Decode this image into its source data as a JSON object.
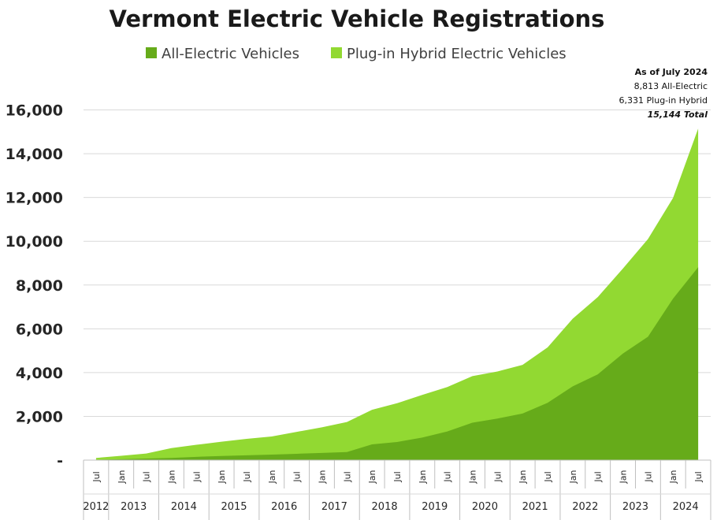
{
  "chart_data": {
    "type": "area",
    "title": "Vermont Electric Vehicle Registrations",
    "stacked": true,
    "legend_position": "top-center",
    "grid": "horizontal",
    "colors": {
      "all_electric": "#66ab1a",
      "phev": "#92d932",
      "grid": "#d9d9d9"
    },
    "ylim": [
      0,
      16000
    ],
    "y_ticks": [
      {
        "value": 0,
        "label": "-"
      },
      {
        "value": 2000,
        "label": "2,000"
      },
      {
        "value": 4000,
        "label": "4,000"
      },
      {
        "value": 6000,
        "label": "6,000"
      },
      {
        "value": 8000,
        "label": "8,000"
      },
      {
        "value": 10000,
        "label": "10,000"
      },
      {
        "value": 12000,
        "label": "12,000"
      },
      {
        "value": 14000,
        "label": "14,000"
      },
      {
        "value": 16000,
        "label": "16,000"
      }
    ],
    "x": [
      "Jul 2012",
      "Jan 2013",
      "Jul 2013",
      "Jan 2014",
      "Jul 2014",
      "Jan 2015",
      "Jul 2015",
      "Jan 2016",
      "Jul 2016",
      "Jan 2017",
      "Jul 2017",
      "Jan 2018",
      "Jul 2018",
      "Jan 2019",
      "Jul 2019",
      "Jan 2020",
      "Jul 2020",
      "Jan 2021",
      "Jul 2021",
      "Jan 2022",
      "Jul 2022",
      "Jan 2023",
      "Jul 2023",
      "Jan 2024",
      "Jul 2024"
    ],
    "x_tick_labels": [
      "Jul",
      "Jan",
      "Jul",
      "Jan",
      "Jul",
      "Jan",
      "Jul",
      "Jan",
      "Jul",
      "Jan",
      "Jul",
      "Jan",
      "Jul",
      "Jan",
      "Jul",
      "Jan",
      "Jul",
      "Jan",
      "Jul",
      "Jan",
      "Jul",
      "Jan",
      "Jul",
      "Jan",
      "Jul"
    ],
    "year_labels": [
      "2012",
      "2013",
      "2014",
      "2015",
      "2016",
      "2017",
      "2018",
      "2019",
      "2020",
      "2021",
      "2022",
      "2023",
      "2024"
    ],
    "series": [
      {
        "name": "All-Electric Vehicles",
        "values": [
          20,
          40,
          70,
          100,
          150,
          190,
          220,
          250,
          290,
          330,
          370,
          720,
          830,
          1030,
          1310,
          1710,
          1900,
          2130,
          2620,
          3370,
          3920,
          4870,
          5640,
          7380,
          8813
        ]
      },
      {
        "name": "Plug-in Hybrid Electric Vehicles",
        "values": [
          80,
          160,
          230,
          450,
          550,
          650,
          750,
          830,
          1000,
          1170,
          1370,
          1580,
          1770,
          1950,
          2030,
          2130,
          2150,
          2220,
          2530,
          3090,
          3530,
          3880,
          4460,
          4600,
          6331
        ]
      }
    ],
    "annotation": {
      "heading": "As of July 2024",
      "line1": "8,813 All-Electric",
      "line2": "6,331 Plug-in Hybrid",
      "total": "15,144 Total"
    }
  }
}
